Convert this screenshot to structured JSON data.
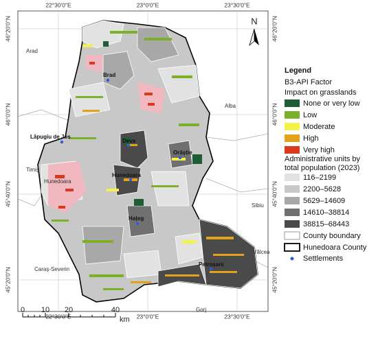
{
  "map": {
    "graticule": {
      "top": [
        "22°30'0\"E",
        "23°0'0\"E",
        "23°30'0\"E"
      ],
      "bottom": [
        "22°30'0\"E",
        "23°0'0\"E",
        "23°30'0\"E"
      ],
      "left": [
        "46°20'0\"N",
        "46°0'0\"N",
        "45°40'0\"N",
        "45°20'0\"N"
      ],
      "right": [
        "46°20'0\"N",
        "46°0'0\"N",
        "45°40'0\"N",
        "45°20'0\"N"
      ]
    },
    "north_arrow": "N",
    "regions": [
      "Arad",
      "Alba",
      "Timiș",
      "Sibiu",
      "Caraș-Severin",
      "Vâlcea",
      "Gorj",
      "Hunedoara"
    ],
    "settlements": [
      "Brad",
      "Lăpugiu de Jos",
      "Deva",
      "Orăștie",
      "Hunedoara",
      "Hațeg",
      "Petroșani"
    ],
    "scale_bar": {
      "labels": [
        0,
        10,
        20,
        40
      ],
      "unit": "km"
    }
  },
  "legend": {
    "title": "Legend",
    "factor": "B3-API Factor",
    "factor_subtitle": "Impact on grasslands",
    "impact_classes": [
      "None or very low",
      "Low",
      "Moderate",
      "High",
      "Very high"
    ],
    "population_title": [
      "Administrative units by",
      "total population (2023)"
    ],
    "population_classes": [
      "116–2199",
      "2200–5628",
      "5629–14609",
      "14610–38814",
      "38815–68443"
    ],
    "county_boundary": "County boundary",
    "hunedoara_county": "Hunedoara County",
    "settlements": "Settlements"
  }
}
